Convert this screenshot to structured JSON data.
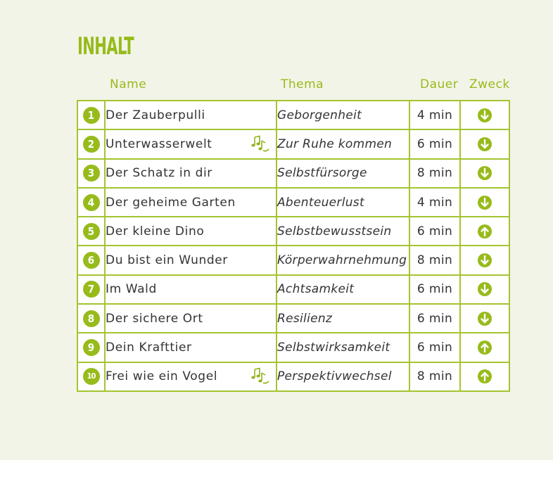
{
  "title": "INHALT",
  "headers": {
    "name": "Name",
    "thema": "Thema",
    "dauer": "Dauer",
    "zweck": "Zweck"
  },
  "colors": {
    "accent": "#97bb1a",
    "border": "#a4c431",
    "background": "#f2f4e8"
  },
  "rows": [
    {
      "num": "1",
      "name": "Der Zauberpulli",
      "thema": "Geborgenheit",
      "dauer": "4 min",
      "music": false,
      "zweck": "down-arrow-icon"
    },
    {
      "num": "2",
      "name": "Unterwasserwelt",
      "thema": "Zur Ruhe kommen",
      "dauer": "6 min",
      "music": true,
      "zweck": "down-arrow-icon"
    },
    {
      "num": "3",
      "name": "Der Schatz in dir",
      "thema": "Selbstfürsorge",
      "dauer": "8 min",
      "music": false,
      "zweck": "down-arrow-icon"
    },
    {
      "num": "4",
      "name": "Der geheime Garten",
      "thema": "Abenteuerlust",
      "dauer": "4 min",
      "music": false,
      "zweck": "down-arrow-icon"
    },
    {
      "num": "5",
      "name": "Der kleine Dino",
      "thema": "Selbstbewusstsein",
      "dauer": "6 min",
      "music": false,
      "zweck": "up-arrow-icon"
    },
    {
      "num": "6",
      "name": "Du bist ein Wunder",
      "thema": "Körperwahrnehmung",
      "dauer": "8 min",
      "music": false,
      "zweck": "down-arrow-icon"
    },
    {
      "num": "7",
      "name": "Im Wald",
      "thema": "Achtsamkeit",
      "dauer": "6 min",
      "music": false,
      "zweck": "down-arrow-icon"
    },
    {
      "num": "8",
      "name": "Der sichere Ort",
      "thema": "Resilienz",
      "dauer": "6 min",
      "music": false,
      "zweck": "down-arrow-icon"
    },
    {
      "num": "9",
      "name": "Dein Krafttier",
      "thema": "Selbstwirksamkeit",
      "dauer": "6 min",
      "music": false,
      "zweck": "up-arrow-icon"
    },
    {
      "num": "10",
      "name": "Frei wie ein Vogel",
      "thema": "Perspektivwechsel",
      "dauer": "8 min",
      "music": true,
      "zweck": "up-arrow-icon"
    }
  ]
}
